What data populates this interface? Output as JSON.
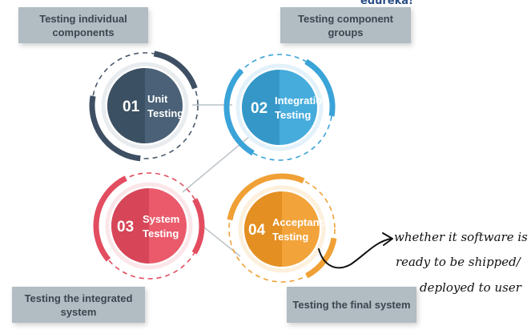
{
  "brand": "edureka!",
  "boxes": {
    "unit": "Testing individual components",
    "integration": "Testing component groups",
    "system": "Testing the integrated system",
    "acceptance": "Testing the final system"
  },
  "stages": [
    {
      "num": "01",
      "line1": "Unit",
      "line2": "Testing",
      "color": "#4a6177",
      "dark": "#3c5063",
      "ring": "#3e4f63"
    },
    {
      "num": "02",
      "line1": "Integration",
      "line2": "Testing",
      "color": "#46acdc",
      "dark": "#3597c7",
      "ring": "#3aa3d8"
    },
    {
      "num": "03",
      "line1": "System",
      "line2": "Testing",
      "color": "#ea5a6b",
      "dark": "#d64658",
      "ring": "#e24d60"
    },
    {
      "num": "04",
      "line1": "Acceptance",
      "line2": "Testing",
      "color": "#f2a33a",
      "dark": "#e38f22",
      "ring": "#f0a035"
    }
  ],
  "handnote": {
    "line1": "whether it software is",
    "line2": "ready to be shipped/",
    "line3": "deployed to user"
  }
}
